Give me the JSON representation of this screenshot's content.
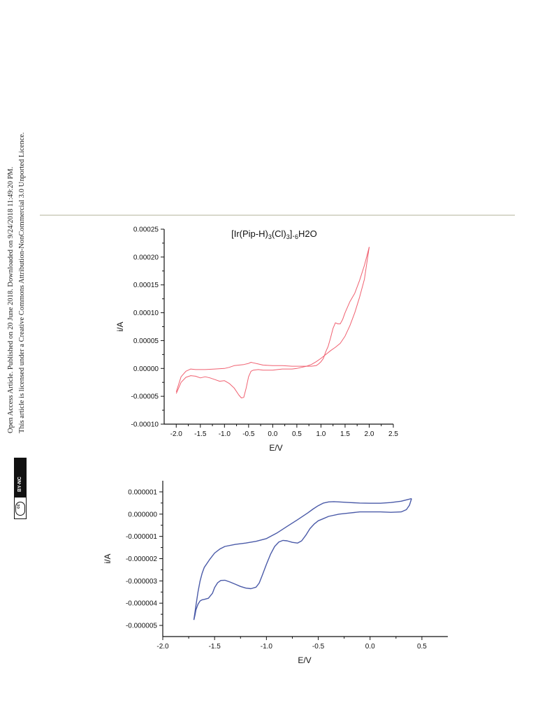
{
  "side_notice": {
    "line1": "Open Access Article. Published on 20 June 2018. Downloaded on 9/24/2018 11:49:20 PM.",
    "line2": "This article is licensed under a Creative Commons Attribution-NonCommercial 3.0 Unported Licence.",
    "badge_text": "BY-NC",
    "cc_text": "cc"
  },
  "chart_data": [
    {
      "type": "line",
      "title": "[Ir(Pip-H)3(Cl)3].6H2O",
      "xlabel": "E/V",
      "ylabel": "i/A",
      "xlim": [
        -2.25,
        2.5
      ],
      "ylim": [
        -0.0001,
        0.00025
      ],
      "xticks": [
        "-2.0",
        "-1.5",
        "-1.0",
        "-0.5",
        "0.0",
        "0.5",
        "1.0",
        "1.5",
        "2.0",
        "2.5"
      ],
      "yticks": [
        "-0.00010",
        "-0.00005",
        "0.00000",
        "0.00005",
        "0.00010",
        "0.00015",
        "0.00020",
        "0.00025"
      ],
      "color": "#f06070",
      "series": [
        {
          "x": [
            -2.0,
            -1.9,
            -1.8,
            -1.7,
            -1.6,
            -1.5,
            -1.4,
            -1.3,
            -1.2,
            -1.1,
            -1.0,
            -0.9,
            -0.8,
            -0.7,
            -0.65,
            -0.6,
            -0.55,
            -0.5,
            -0.45,
            -0.4,
            -0.3,
            -0.2,
            -0.1,
            0.0,
            0.1,
            0.2,
            0.3,
            0.4,
            0.5,
            0.6,
            0.7,
            0.8,
            0.9,
            1.0,
            1.1,
            1.2,
            1.3,
            1.4,
            1.5,
            1.6,
            1.7,
            1.8,
            1.9,
            2.0
          ],
          "y": [
            -4.5e-05,
            -2.5e-05,
            -1.6e-05,
            -1.3e-05,
            -1.4e-05,
            -1.7e-05,
            -1.5e-05,
            -1.7e-05,
            -2e-05,
            -2.3e-05,
            -2.2e-05,
            -2.7e-05,
            -3.5e-05,
            -4.8e-05,
            -5.3e-05,
            -5.2e-05,
            -3.5e-05,
            -1.5e-05,
            -5e-06,
            -3e-06,
            -2e-06,
            -3e-06,
            -3e-06,
            -3e-06,
            -2e-06,
            -1e-06,
            -1e-06,
            -1e-06,
            0.0,
            2e-06,
            4e-06,
            7e-06,
            1.2e-05,
            1.8e-05,
            2.5e-05,
            3.2e-05,
            3.8e-05,
            4.5e-05,
            5.8e-05,
            7.7e-05,
            0.0001,
            0.000128,
            0.00016,
            0.000218
          ]
        },
        {
          "x": [
            2.0,
            1.9,
            1.8,
            1.7,
            1.6,
            1.5,
            1.45,
            1.4,
            1.35,
            1.3,
            1.25,
            1.2,
            1.15,
            1.1,
            1.05,
            1.0,
            0.95,
            0.9,
            0.8,
            0.6,
            0.4,
            0.2,
            0.0,
            -0.2,
            -0.3,
            -0.4,
            -0.45,
            -0.5,
            -0.6,
            -0.8,
            -0.9,
            -1.0,
            -1.2,
            -1.4,
            -1.6,
            -1.7,
            -1.8,
            -1.9,
            -2.0
          ],
          "y": [
            0.000218,
            0.000185,
            0.000158,
            0.000135,
            0.00012,
            0.0001,
            8.8e-05,
            8e-05,
            8e-05,
            8.2e-05,
            7.2e-05,
            5.5e-05,
            4e-05,
            3e-05,
            1.8e-05,
            1.2e-05,
            8e-06,
            5e-06,
            4e-06,
            4e-06,
            4e-06,
            5e-06,
            5e-06,
            6e-06,
            8e-06,
            1e-05,
            1.1e-05,
            9e-06,
            7e-06,
            5e-06,
            2e-06,
            0.0,
            -1e-06,
            -2e-06,
            -2e-06,
            -1e-06,
            -5e-06,
            -1.5e-05,
            -4.2e-05
          ]
        }
      ]
    },
    {
      "type": "line",
      "xlabel": "E/V",
      "ylabel": "i/A",
      "xlim": [
        -2.0,
        0.75
      ],
      "ylim": [
        -5.5e-06,
        1.5e-06
      ],
      "xticks": [
        "-2.0",
        "-1.5",
        "-1.0",
        "-0.5",
        "0.0",
        "0.5"
      ],
      "yticks": [
        "-0.000005",
        "-0.000004",
        "-0.000003",
        "-0.000002",
        "-0.000001",
        "0.000000",
        "0.000001"
      ],
      "color": "#4a5aa8",
      "series": [
        {
          "x": [
            -1.7,
            -1.69,
            -1.68,
            -1.66,
            -1.64,
            -1.62,
            -1.6,
            -1.56,
            -1.52,
            -1.5,
            -1.47,
            -1.44,
            -1.4,
            -1.35,
            -1.3,
            -1.25,
            -1.2,
            -1.15,
            -1.1,
            -1.07,
            -1.04,
            -1.0,
            -0.96,
            -0.92,
            -0.88,
            -0.84,
            -0.8,
            -0.75,
            -0.7,
            -0.66,
            -0.62,
            -0.58,
            -0.54,
            -0.5,
            -0.45,
            -0.4,
            -0.3,
            -0.2,
            -0.1,
            0.0,
            0.1,
            0.2,
            0.3,
            0.35,
            0.38,
            0.4
          ],
          "y": [
            -4.75e-06,
            -4.55e-06,
            -4.3e-06,
            -4.05e-06,
            -3.9e-06,
            -3.85e-06,
            -3.83e-06,
            -3.78e-06,
            -3.55e-06,
            -3.3e-06,
            -3.08e-06,
            -2.98e-06,
            -2.97e-06,
            -3.05e-06,
            -3.15e-06,
            -3.25e-06,
            -3.32e-06,
            -3.35e-06,
            -3.28e-06,
            -3.1e-06,
            -2.75e-06,
            -2.25e-06,
            -1.8e-06,
            -1.45e-06,
            -1.25e-06,
            -1.18e-06,
            -1.2e-06,
            -1.27e-06,
            -1.3e-06,
            -1.2e-06,
            -9.5e-07,
            -6.5e-07,
            -4.5e-07,
            -3e-07,
            -2e-07,
            -1e-07,
            0.0,
            5e-08,
            1e-07,
            1e-07,
            1e-07,
            8e-08,
            1e-07,
            2e-07,
            4e-07,
            7e-07
          ]
        },
        {
          "x": [
            0.4,
            0.36,
            0.3,
            0.2,
            0.1,
            0.0,
            -0.1,
            -0.2,
            -0.3,
            -0.35,
            -0.4,
            -0.45,
            -0.5,
            -0.55,
            -0.6,
            -0.7,
            -0.8,
            -0.9,
            -1.0,
            -1.1,
            -1.2,
            -1.3,
            -1.4,
            -1.45,
            -1.5,
            -1.55,
            -1.6,
            -1.62,
            -1.64,
            -1.66,
            -1.68,
            -1.7
          ],
          "y": [
            7e-07,
            6.5e-07,
            5.8e-07,
            5.2e-07,
            4.9e-07,
            4.9e-07,
            5e-07,
            5.2e-07,
            5.5e-07,
            5.6e-07,
            5.5e-07,
            5e-07,
            3.8e-07,
            2.3e-07,
            6e-08,
            -2.5e-07,
            -5.5e-07,
            -8.5e-07,
            -1.1e-06,
            -1.22e-06,
            -1.3e-06,
            -1.36e-06,
            -1.45e-06,
            -1.57e-06,
            -1.75e-06,
            -2.05e-06,
            -2.4e-06,
            -2.65e-06,
            -3e-06,
            -3.5e-06,
            -4.1e-06,
            -4.75e-06
          ]
        }
      ]
    }
  ]
}
